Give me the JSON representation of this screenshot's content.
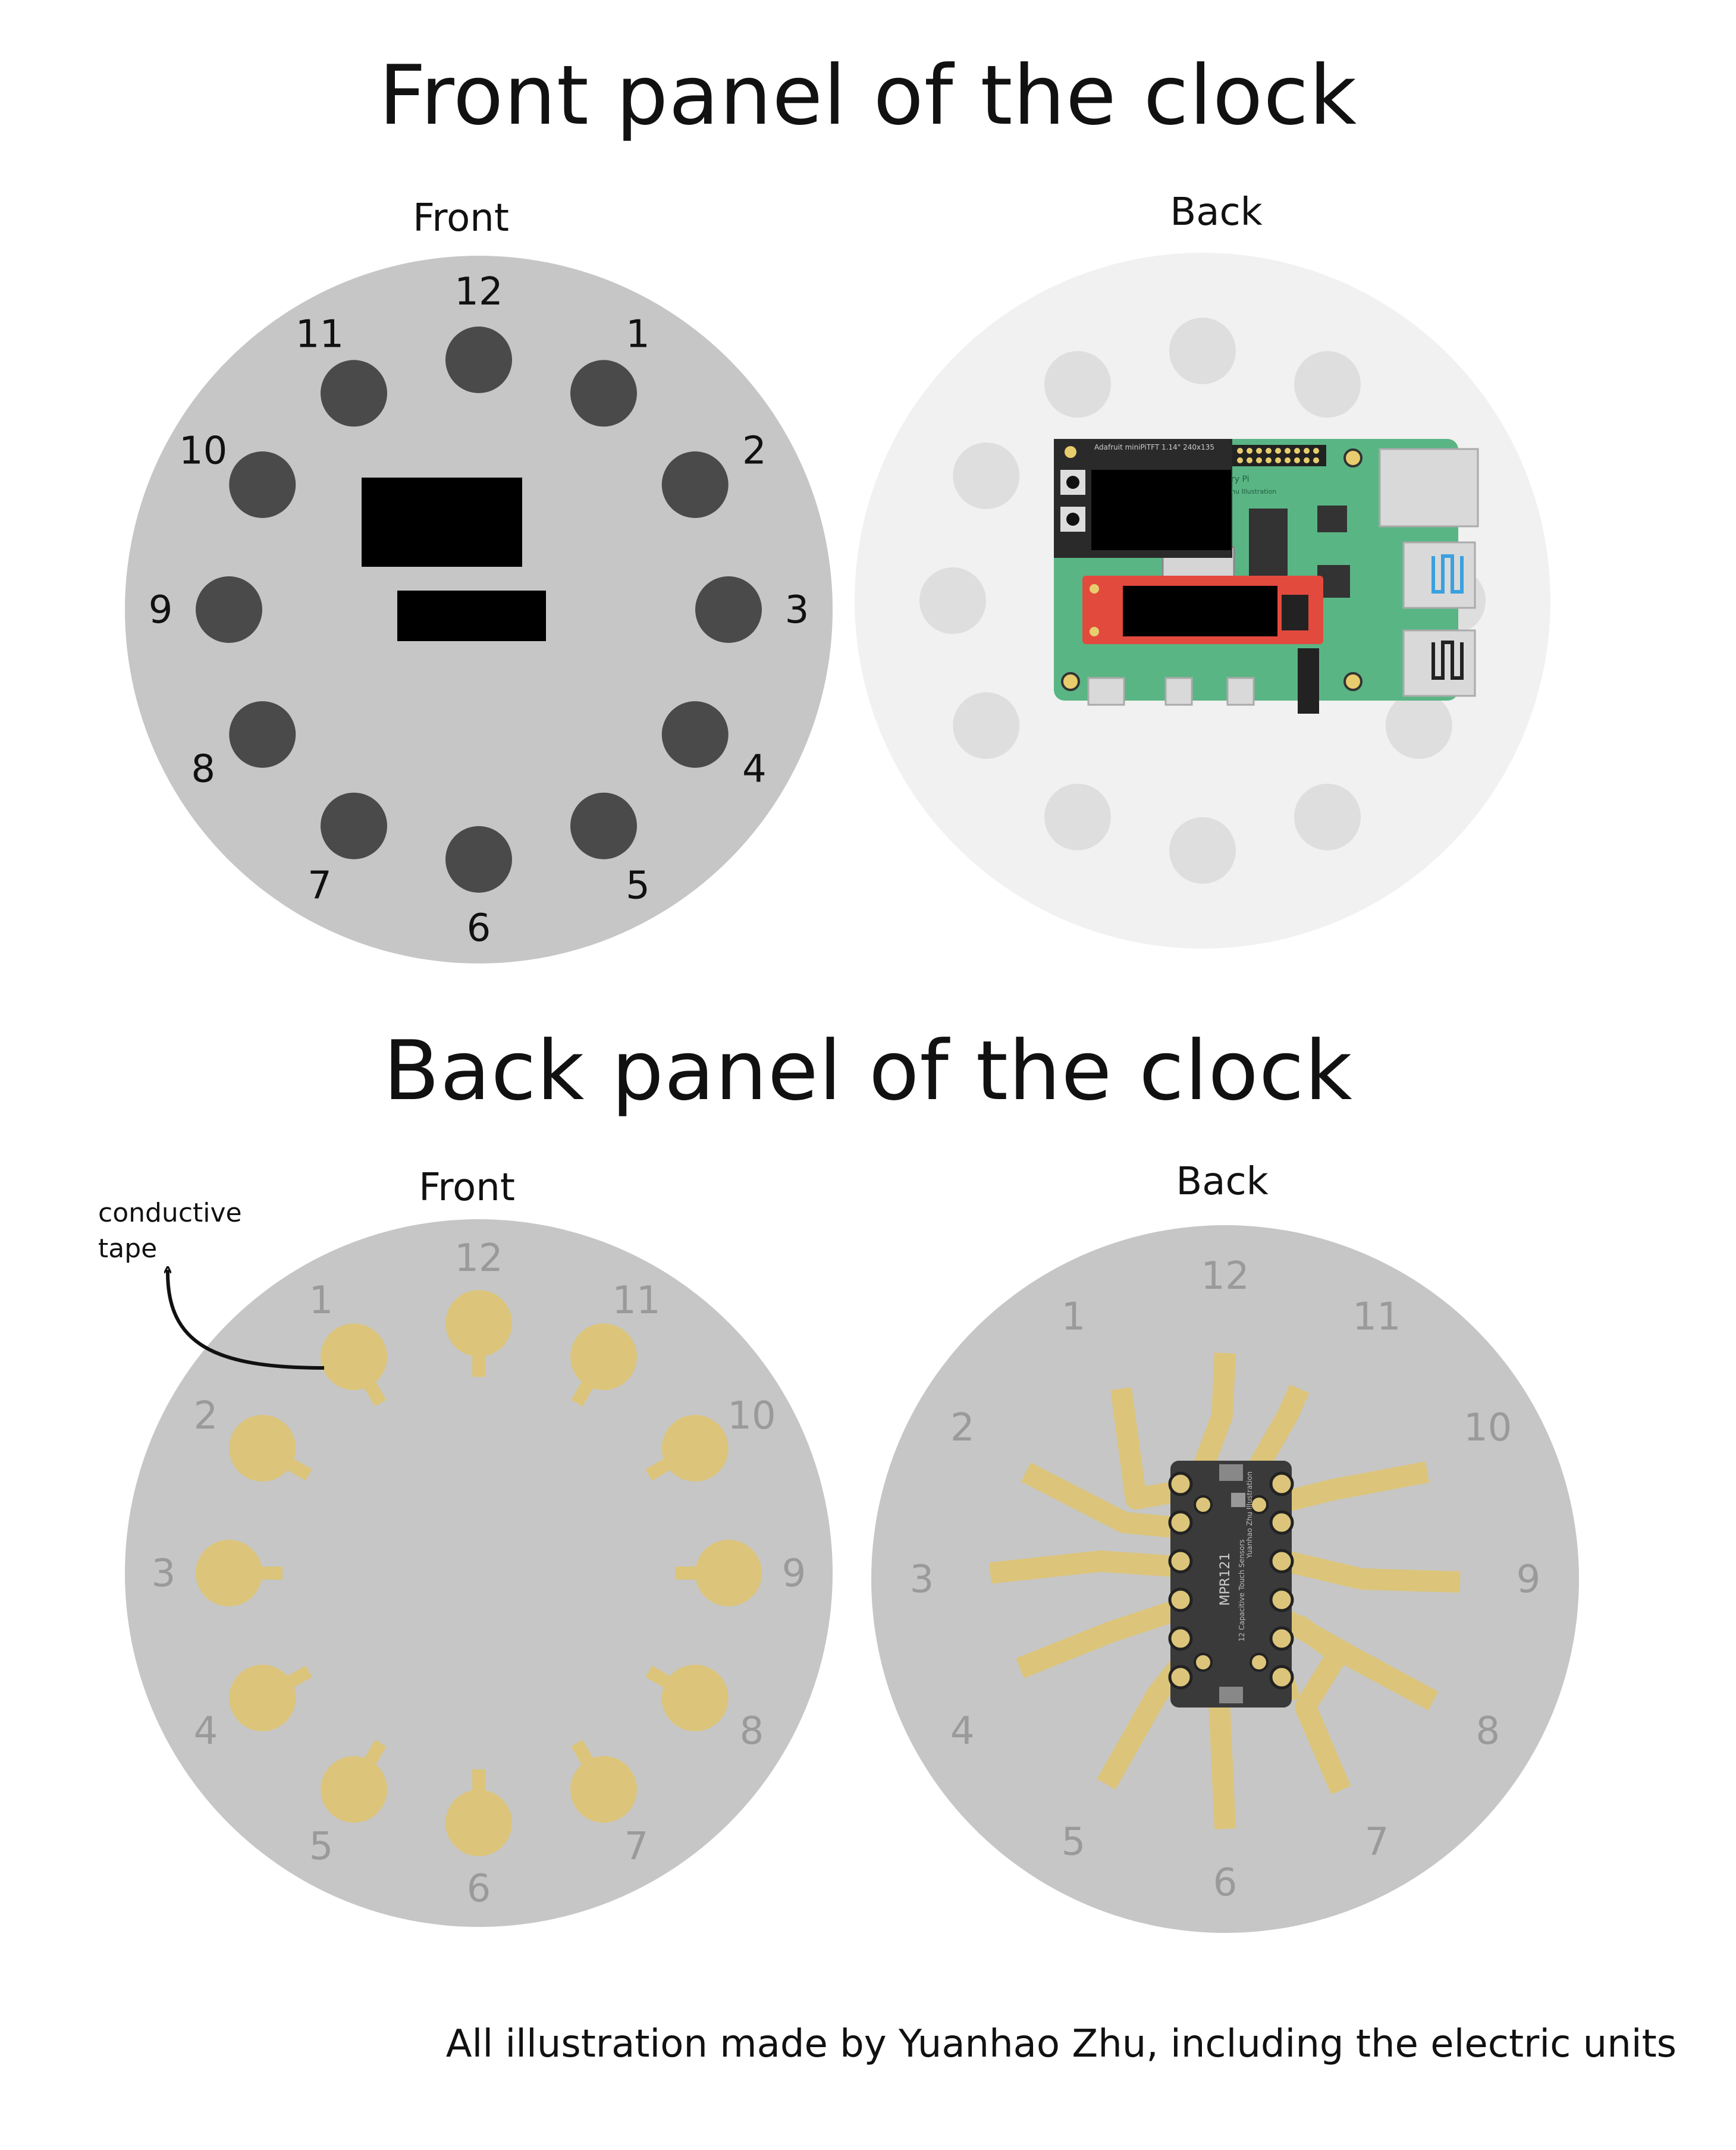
{
  "sections": {
    "front_panel_title": "Front panel of the clock",
    "back_panel_title": "Back panel of the clock"
  },
  "views": {
    "front_label": "Front",
    "back_label": "Back"
  },
  "dial_numbers": [
    "12",
    "1",
    "2",
    "3",
    "4",
    "5",
    "6",
    "7",
    "8",
    "9",
    "10",
    "11"
  ],
  "mirrored_numbers": [
    "12",
    "11",
    "10",
    "9",
    "8",
    "7",
    "6",
    "5",
    "4",
    "3",
    "2",
    "1"
  ],
  "annotations": {
    "conductive_tape": "conductive\ntape"
  },
  "components": {
    "pi_header_text": "Adafruit miniPiTFT 1.14\" 240x135",
    "pi_brand_text": "ry Pi",
    "pi_credit_text": "hu Illustration",
    "mpr121_label": "MPR121",
    "mpr121_sub": "12 Capacitive Touch Sensors",
    "mpr121_credit": "Yuanhao Zhu Illustration"
  },
  "credit": "All illustration made by Yuanhao Zhu, including the electric units",
  "colors": {
    "front_dial": "#c6c6c6",
    "front_back_dial": "#f1f1f1",
    "button_dark": "#4a4a4a",
    "button_ghost": "#dedede",
    "tape_gold": "#dcc57a",
    "pcb_green": "#5ab585",
    "pcb_red": "#e24a3d",
    "board_dark": "#3a3a3a",
    "number_grey": "#9a9a9a"
  }
}
